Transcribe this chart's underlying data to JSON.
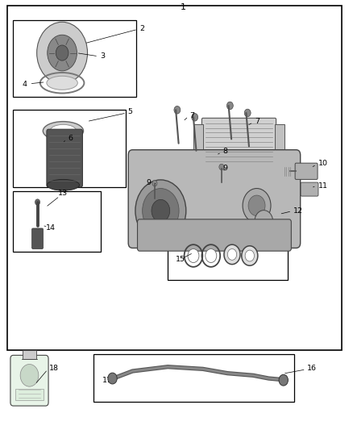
{
  "title": "1",
  "background_color": "#ffffff",
  "border_color": "#000000",
  "text_color": "#000000",
  "fig_width": 4.38,
  "fig_height": 5.33,
  "dpi": 100
}
